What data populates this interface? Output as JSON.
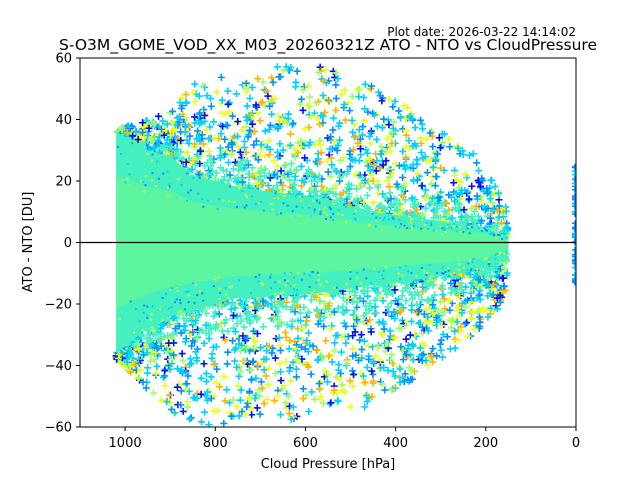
{
  "chart_data": {
    "type": "scatter",
    "title": "S-O3M_GOME_VOD_XX_M03_20260321Z ATO - NTO vs CloudPressure",
    "plot_date": "Plot date: 2026-03-22 14:14:02",
    "xlabel": "Cloud Pressure [hPa]",
    "ylabel": "ATO - NTO [DU]",
    "xlim": [
      1100,
      0
    ],
    "ylim": [
      -60,
      60
    ],
    "x_ticks": [
      1000,
      800,
      600,
      400,
      200,
      0
    ],
    "y_ticks": [
      60,
      40,
      20,
      0,
      -20,
      -40,
      -60
    ],
    "x_tick_labels": [
      "1000",
      "800",
      "600",
      "400",
      "200",
      "0"
    ],
    "y_tick_labels": [
      "60",
      "40",
      "20",
      "0",
      "−20",
      "−40",
      "−60"
    ],
    "reference_line_y": 0,
    "marker": "+",
    "grid": false,
    "colors": {
      "core": "#5ef5a0",
      "core_edge": "#44f0c0",
      "cyan": "#00d0ff",
      "blue": "#0090ff",
      "dark_blue": "#0010f0",
      "yellow": "#e8ff20",
      "lime": "#a0ff60",
      "orange": "#ffb400"
    },
    "envelope": {
      "x": [
        1020,
        950,
        900,
        850,
        800,
        750,
        700,
        650,
        600,
        550,
        500,
        450,
        400,
        350,
        300,
        250,
        200,
        175,
        150
      ],
      "y_upper": [
        37,
        40,
        44,
        52,
        55,
        55,
        56,
        58,
        58,
        57,
        55,
        52,
        46,
        42,
        36,
        32,
        25,
        18,
        10
      ],
      "y_lower": [
        -38,
        -48,
        -55,
        -58,
        -60,
        -58,
        -58,
        -58,
        -58,
        -56,
        -56,
        -52,
        -48,
        -44,
        -38,
        -33,
        -26,
        -22,
        -15
      ],
      "core_upper": [
        36,
        30,
        28,
        22,
        20,
        18,
        17,
        16,
        15,
        14,
        12,
        10,
        9,
        8,
        7,
        6,
        5,
        3,
        2
      ],
      "core_lower": [
        -36,
        -28,
        -24,
        -22,
        -20,
        -18,
        -18,
        -17,
        -17,
        -16,
        -15,
        -14,
        -13,
        -12,
        -11,
        -10,
        -8,
        -6,
        -3
      ]
    },
    "edge_cluster": {
      "x": 0,
      "y_range": [
        -16,
        25
      ]
    }
  }
}
